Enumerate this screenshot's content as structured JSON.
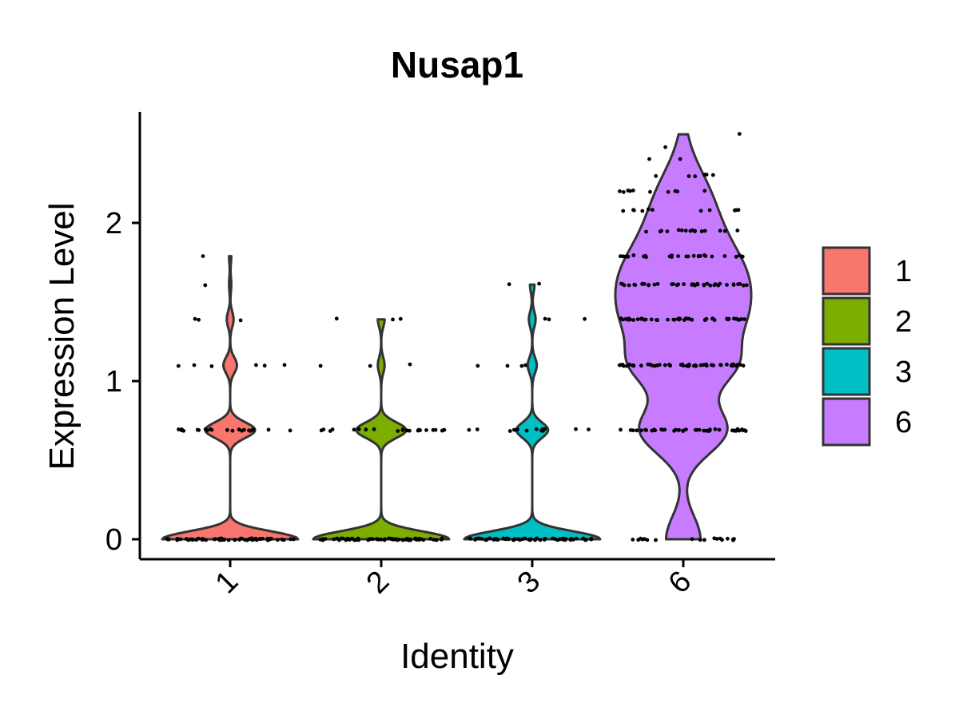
{
  "chart_data": {
    "type": "violin",
    "title": "Nusap1",
    "xlabel": "Identity",
    "ylabel": "Expression Level",
    "categories": [
      "1",
      "2",
      "3",
      "6"
    ],
    "ylim": [
      -0.13,
      2.72
    ],
    "yticks": [
      0,
      1,
      2
    ],
    "grid": false,
    "legend_position": "right",
    "legend": [
      {
        "label": "1",
        "color": "#F8766D"
      },
      {
        "label": "2",
        "color": "#7CAE00"
      },
      {
        "label": "3",
        "color": "#00BFC4"
      },
      {
        "label": "6",
        "color": "#C77CFF"
      }
    ],
    "series": [
      {
        "category": "1",
        "max": 1.79,
        "color": "#F8766D",
        "levels": [
          {
            "y": 0.0,
            "count": 60
          },
          {
            "y": 0.69,
            "count": 22
          },
          {
            "y": 1.1,
            "count": 6
          },
          {
            "y": 1.39,
            "count": 3
          },
          {
            "y": 1.61,
            "count": 1
          },
          {
            "y": 1.79,
            "count": 1
          }
        ]
      },
      {
        "category": "2",
        "max": 1.39,
        "color": "#7CAE00",
        "levels": [
          {
            "y": 0.0,
            "count": 60
          },
          {
            "y": 0.69,
            "count": 22
          },
          {
            "y": 1.1,
            "count": 3
          },
          {
            "y": 1.39,
            "count": 3
          }
        ]
      },
      {
        "category": "3",
        "max": 1.61,
        "color": "#00BFC4",
        "levels": [
          {
            "y": 0.0,
            "count": 60
          },
          {
            "y": 0.69,
            "count": 14
          },
          {
            "y": 1.1,
            "count": 4
          },
          {
            "y": 1.39,
            "count": 3
          },
          {
            "y": 1.61,
            "count": 2
          }
        ]
      },
      {
        "category": "6",
        "max": 2.56,
        "color": "#C77CFF",
        "levels": [
          {
            "y": 0.0,
            "count": 18
          },
          {
            "y": 0.69,
            "count": 45
          },
          {
            "y": 1.1,
            "count": 50
          },
          {
            "y": 1.39,
            "count": 45
          },
          {
            "y": 1.61,
            "count": 40
          },
          {
            "y": 1.79,
            "count": 28
          },
          {
            "y": 1.95,
            "count": 16
          },
          {
            "y": 2.08,
            "count": 12
          },
          {
            "y": 2.2,
            "count": 10
          },
          {
            "y": 2.3,
            "count": 6
          },
          {
            "y": 2.4,
            "count": 2
          },
          {
            "y": 2.48,
            "count": 1
          },
          {
            "y": 2.56,
            "count": 1
          }
        ]
      }
    ]
  }
}
